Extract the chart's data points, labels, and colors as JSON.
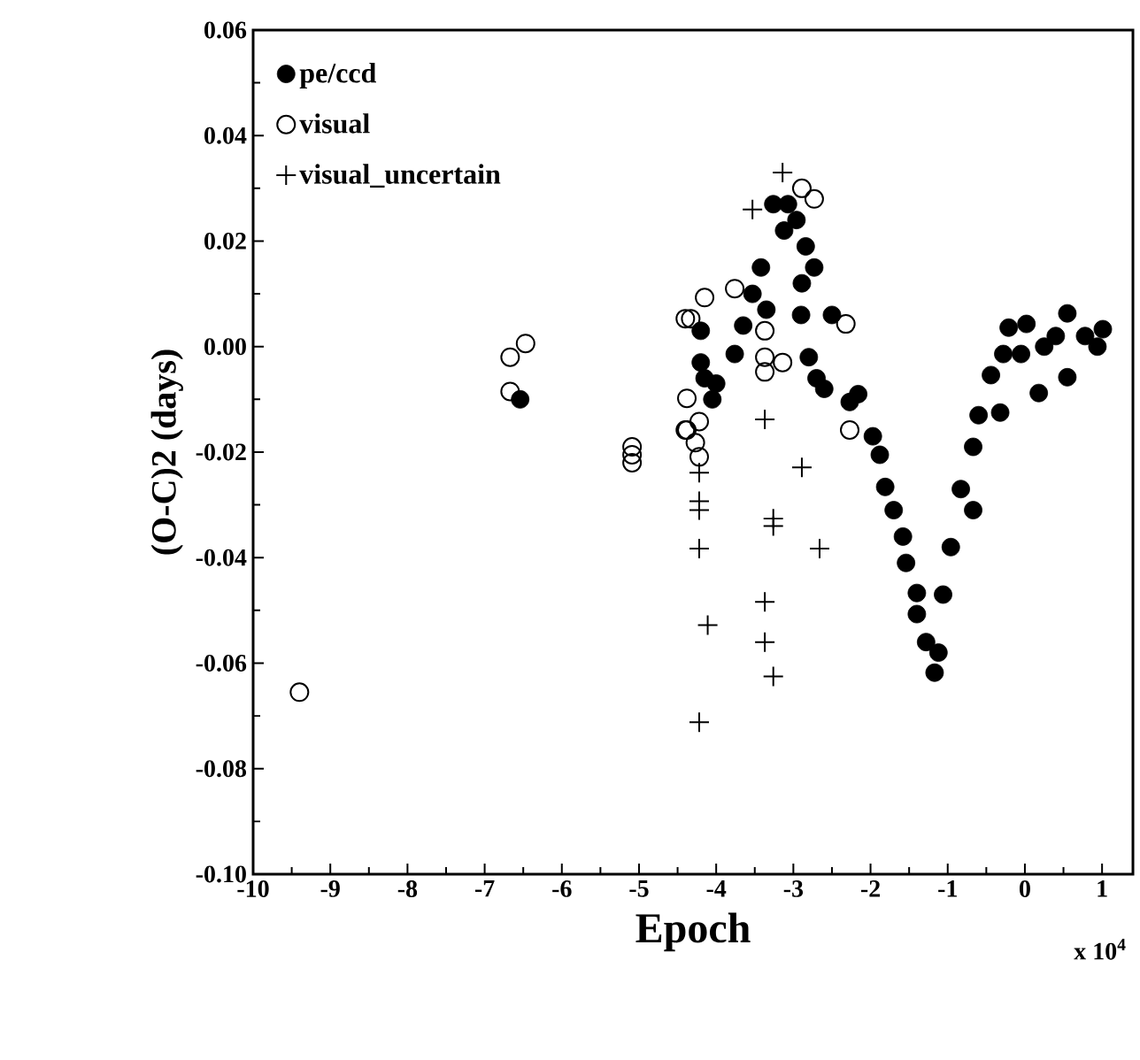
{
  "chart_data": {
    "type": "scatter",
    "xlabel": "Epoch",
    "ylabel": "(O-C)2  (days)",
    "annotations": [
      "x 10$^{4}$"
    ],
    "xlim": [
      -10,
      1.4
    ],
    "ylim": [
      -0.1,
      0.06
    ],
    "xticks": [
      -10,
      -9,
      -8,
      -7,
      -6,
      -5,
      -4,
      -3,
      -2,
      -1,
      0,
      1
    ],
    "yticks": [
      {
        "value": -0.1,
        "label": "-0.10"
      },
      {
        "value": -0.08,
        "label": "-0.08"
      },
      {
        "value": -0.06,
        "label": "-0.06"
      },
      {
        "value": -0.04,
        "label": "-0.04"
      },
      {
        "value": -0.02,
        "label": "-0.02"
      },
      {
        "value": 0,
        "label": "0.00"
      },
      {
        "value": 0.02,
        "label": "0.02"
      },
      {
        "value": 0.04,
        "label": "0.04"
      },
      {
        "value": 0.06,
        "label": "0.06"
      }
    ],
    "grid": false,
    "legend": "top left",
    "series": [
      {
        "name": "pe/ccd",
        "color": "#000000",
        "marker": "circle",
        "x": [
          -6.54,
          -4.2,
          -4.2,
          -4.15,
          -4.0,
          -4.05,
          -3.26,
          -3.12,
          -2.96,
          -2.84,
          -2.73,
          -2.89,
          -3.42,
          -3.53,
          -3.35,
          -3.65,
          -3.76,
          -3.07,
          -2.9,
          -2.8,
          -2.7,
          -2.6,
          -2.5,
          -2.27,
          -2.16,
          -1.97,
          -1.88,
          -1.81,
          -1.7,
          -1.58,
          -1.54,
          -1.4,
          -1.4,
          -1.28,
          -1.17,
          -1.12,
          -1.06,
          -0.96,
          -0.83,
          -0.67,
          -0.67,
          -0.6,
          -0.32,
          -0.44,
          -0.28,
          -0.21,
          0.02,
          0.18,
          0.25,
          0.55,
          0.55,
          0.78,
          0.94,
          1.01,
          0.4,
          -0.05
        ],
        "values": [
          -0.01,
          0.003,
          -0.003,
          -0.006,
          -0.007,
          -0.01,
          0.027,
          0.022,
          0.024,
          0.019,
          0.015,
          0.012,
          0.015,
          0.01,
          0.007,
          0.004,
          -0.0014,
          0.027,
          0.006,
          -0.002,
          -0.006,
          -0.008,
          0.006,
          -0.0105,
          -0.009,
          -0.017,
          -0.0205,
          -0.0266,
          -0.031,
          -0.036,
          -0.041,
          -0.0467,
          -0.0507,
          -0.056,
          -0.0618,
          -0.058,
          -0.047,
          -0.038,
          -0.027,
          -0.031,
          -0.019,
          -0.013,
          -0.0125,
          -0.0054,
          -0.0014,
          0.0036,
          0.0043,
          -0.0088,
          0.0,
          0.0063,
          -0.0058,
          0.002,
          0.0,
          0.0033,
          0.002,
          -0.0014
        ]
      },
      {
        "name": "visual",
        "color": "#000000",
        "marker": "circle_open",
        "x": [
          -9.4,
          -6.67,
          -6.47,
          -6.67,
          -5.09,
          -5.09,
          -5.09,
          -4.4,
          -4.4,
          -4.15,
          -4.33,
          -3.76,
          -3.37,
          -3.37,
          -3.37,
          -3.14,
          -2.32,
          -2.27,
          -4.38,
          -4.38,
          -4.22,
          -4.27,
          -4.22,
          -2.89,
          -2.73
        ],
        "values": [
          -0.0655,
          -0.002,
          0.0006,
          -0.0085,
          -0.0205,
          -0.022,
          -0.019,
          0.0053,
          -0.0158,
          0.0093,
          0.0053,
          0.011,
          0.003,
          -0.002,
          -0.0048,
          -0.003,
          0.0043,
          -0.0158,
          -0.0098,
          -0.0158,
          -0.0142,
          -0.0182,
          -0.0209,
          0.03,
          0.028
        ]
      },
      {
        "name": "visual_uncertain",
        "color": "#000000",
        "marker": "cross",
        "x": [
          -3.14,
          -3.53,
          -3.37,
          -2.89,
          -3.26,
          -3.26,
          -2.66,
          -4.22,
          -4.22,
          -4.22,
          -4.22,
          -4.11,
          -3.37,
          -3.37,
          -3.26,
          -4.22
        ],
        "values": [
          0.033,
          0.026,
          -0.0138,
          -0.0229,
          -0.0326,
          -0.034,
          -0.0383,
          -0.0383,
          -0.0293,
          -0.031,
          -0.0239,
          -0.0528,
          -0.0484,
          -0.056,
          -0.0625,
          -0.0712
        ]
      }
    ]
  }
}
